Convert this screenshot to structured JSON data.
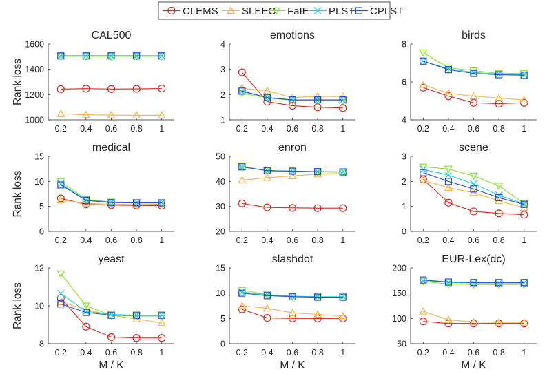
{
  "legend": {
    "placement": "top-center",
    "items": [
      {
        "name": "CLEMS",
        "color": "#d7261e",
        "marker": "circle"
      },
      {
        "name": "SLEEC",
        "color": "#f5b14c",
        "marker": "triangle-up"
      },
      {
        "name": "FaIE",
        "color": "#8de02a",
        "marker": "triangle-down"
      },
      {
        "name": "PLST",
        "color": "#1ecfe6",
        "marker": "x"
      },
      {
        "name": "CPLST",
        "color": "#2a4fd6",
        "marker": "square"
      }
    ]
  },
  "chart_data": [
    {
      "type": "line",
      "title": "CAL500",
      "xlabel": "",
      "ylabel": "Rank loss",
      "x": [
        0.2,
        0.4,
        0.6,
        0.8,
        1
      ],
      "xlim": [
        0.1,
        1.1
      ],
      "ylim": [
        1000,
        1600
      ],
      "yticks": [
        1000,
        1200,
        1400,
        1600
      ],
      "grid": false,
      "series": [
        {
          "name": "CLEMS",
          "values": [
            1243,
            1247,
            1244,
            1245,
            1248
          ]
        },
        {
          "name": "SLEEC",
          "values": [
            1048,
            1040,
            1038,
            1036,
            1036
          ]
        },
        {
          "name": "FaIE",
          "values": [
            1503,
            1503,
            1503,
            1503,
            1503
          ]
        },
        {
          "name": "PLST",
          "values": [
            1506,
            1506,
            1506,
            1506,
            1506
          ]
        },
        {
          "name": "CPLST",
          "values": [
            1506,
            1506,
            1506,
            1506,
            1506
          ]
        }
      ]
    },
    {
      "type": "line",
      "title": "emotions",
      "xlabel": "",
      "ylabel": "",
      "x": [
        0.2,
        0.4,
        0.6,
        0.8,
        1
      ],
      "xlim": [
        0.1,
        1.1
      ],
      "ylim": [
        1,
        4
      ],
      "yticks": [
        1,
        2,
        3,
        4
      ],
      "grid": false,
      "series": [
        {
          "name": "CLEMS",
          "values": [
            2.88,
            1.72,
            1.56,
            1.5,
            1.47
          ]
        },
        {
          "name": "SLEEC",
          "values": [
            2.25,
            2.15,
            1.88,
            1.93,
            1.92
          ]
        },
        {
          "name": "FaIE",
          "values": [
            2.05,
            1.87,
            1.77,
            1.78,
            1.77
          ]
        },
        {
          "name": "PLST",
          "values": [
            2.12,
            1.88,
            1.79,
            1.79,
            1.78
          ]
        },
        {
          "name": "CPLST",
          "values": [
            2.14,
            1.88,
            1.79,
            1.79,
            1.79
          ]
        }
      ]
    },
    {
      "type": "line",
      "title": "birds",
      "xlabel": "",
      "ylabel": "",
      "x": [
        0.2,
        0.4,
        0.6,
        0.8,
        1
      ],
      "xlim": [
        0.1,
        1.1
      ],
      "ylim": [
        4,
        8
      ],
      "yticks": [
        4,
        6,
        8
      ],
      "grid": false,
      "series": [
        {
          "name": "CLEMS",
          "values": [
            5.7,
            5.25,
            4.9,
            4.85,
            4.9
          ]
        },
        {
          "name": "SLEEC",
          "values": [
            5.85,
            5.4,
            5.25,
            5.15,
            5.05
          ]
        },
        {
          "name": "FaIE",
          "values": [
            7.55,
            6.75,
            6.6,
            6.45,
            6.45
          ]
        },
        {
          "name": "PLST",
          "values": [
            7.1,
            6.7,
            6.5,
            6.42,
            6.38
          ]
        },
        {
          "name": "CPLST",
          "values": [
            7.1,
            6.65,
            6.45,
            6.38,
            6.35
          ]
        }
      ]
    },
    {
      "type": "line",
      "title": "medical",
      "xlabel": "",
      "ylabel": "Rank loss",
      "x": [
        0.2,
        0.4,
        0.6,
        0.8,
        1
      ],
      "xlim": [
        0.1,
        1.1
      ],
      "ylim": [
        0,
        15
      ],
      "yticks": [
        0,
        5,
        10,
        15
      ],
      "grid": false,
      "series": [
        {
          "name": "CLEMS",
          "values": [
            6.6,
            5.4,
            5.25,
            5.2,
            5.15
          ]
        },
        {
          "name": "SLEEC",
          "values": [
            6.3,
            5.6,
            5.45,
            5.4,
            5.45
          ]
        },
        {
          "name": "FaIE",
          "values": [
            10.0,
            6.4,
            5.9,
            5.8,
            5.8
          ]
        },
        {
          "name": "PLST",
          "values": [
            9.5,
            6.3,
            5.85,
            5.75,
            5.75
          ]
        },
        {
          "name": "CPLST",
          "values": [
            9.3,
            6.2,
            5.75,
            5.7,
            5.7
          ]
        }
      ]
    },
    {
      "type": "line",
      "title": "enron",
      "xlabel": "",
      "ylabel": "",
      "x": [
        0.2,
        0.4,
        0.6,
        0.8,
        1
      ],
      "xlim": [
        0.1,
        1.1
      ],
      "ylim": [
        20,
        50
      ],
      "yticks": [
        20,
        30,
        40,
        50
      ],
      "grid": false,
      "series": [
        {
          "name": "CLEMS",
          "values": [
            31.2,
            29.6,
            29.4,
            29.3,
            29.3
          ]
        },
        {
          "name": "SLEEC",
          "values": [
            40.5,
            41.5,
            42.2,
            42.9,
            43.2
          ]
        },
        {
          "name": "FaIE",
          "values": [
            46.2,
            44.2,
            44.0,
            43.8,
            43.7
          ]
        },
        {
          "name": "PLST",
          "values": [
            45.8,
            44.3,
            44.1,
            43.9,
            43.8
          ]
        },
        {
          "name": "CPLST",
          "values": [
            45.8,
            44.3,
            44.1,
            43.9,
            43.8
          ]
        }
      ]
    },
    {
      "type": "line",
      "title": "scene",
      "xlabel": "",
      "ylabel": "",
      "x": [
        0.2,
        0.4,
        0.6,
        0.8,
        1
      ],
      "xlim": [
        0.1,
        1.1
      ],
      "ylim": [
        0,
        3
      ],
      "yticks": [
        0,
        1,
        2,
        3
      ],
      "grid": false,
      "series": [
        {
          "name": "CLEMS",
          "values": [
            2.08,
            1.15,
            0.8,
            0.72,
            0.67
          ]
        },
        {
          "name": "SLEEC",
          "values": [
            2.05,
            1.75,
            1.55,
            1.22,
            0.95
          ]
        },
        {
          "name": "FaIE",
          "values": [
            2.58,
            2.5,
            2.22,
            1.82,
            1.12
          ]
        },
        {
          "name": "PLST",
          "values": [
            2.48,
            2.25,
            1.9,
            1.45,
            1.1
          ]
        },
        {
          "name": "CPLST",
          "values": [
            2.35,
            2.0,
            1.7,
            1.35,
            1.08
          ]
        }
      ]
    },
    {
      "type": "line",
      "title": "yeast",
      "xlabel": "M / K",
      "ylabel": "Rank loss",
      "x": [
        0.2,
        0.4,
        0.6,
        0.8,
        1
      ],
      "xlim": [
        0.1,
        1.1
      ],
      "ylim": [
        8,
        12
      ],
      "yticks": [
        8,
        10,
        12
      ],
      "grid": false,
      "series": [
        {
          "name": "CLEMS",
          "values": [
            10.4,
            8.9,
            8.35,
            8.3,
            8.3
          ]
        },
        {
          "name": "SLEEC",
          "values": [
            10.2,
            9.8,
            9.5,
            9.3,
            9.1
          ]
        },
        {
          "name": "FaIE",
          "values": [
            11.7,
            10.0,
            9.5,
            9.45,
            9.45
          ]
        },
        {
          "name": "PLST",
          "values": [
            10.65,
            9.7,
            9.55,
            9.5,
            9.5
          ]
        },
        {
          "name": "CPLST",
          "values": [
            10.1,
            9.65,
            9.5,
            9.5,
            9.5
          ]
        }
      ]
    },
    {
      "type": "line",
      "title": "slashdot",
      "xlabel": "M / K",
      "ylabel": "",
      "x": [
        0.2,
        0.4,
        0.6,
        0.8,
        1
      ],
      "xlim": [
        0.1,
        1.1
      ],
      "ylim": [
        0,
        15
      ],
      "yticks": [
        0,
        5,
        10,
        15
      ],
      "grid": false,
      "series": [
        {
          "name": "CLEMS",
          "values": [
            6.8,
            5.1,
            5.0,
            5.0,
            5.0
          ]
        },
        {
          "name": "SLEEC",
          "values": [
            7.5,
            7.0,
            6.1,
            5.8,
            5.5
          ]
        },
        {
          "name": "FaIE",
          "values": [
            10.6,
            9.7,
            9.3,
            9.2,
            9.2
          ]
        },
        {
          "name": "PLST",
          "values": [
            10.2,
            9.7,
            9.4,
            9.3,
            9.3
          ]
        },
        {
          "name": "CPLST",
          "values": [
            10.0,
            9.5,
            9.3,
            9.2,
            9.2
          ]
        }
      ]
    },
    {
      "type": "line",
      "title": "EUR-Lex(dc)",
      "xlabel": "M / K",
      "ylabel": "",
      "x": [
        0.2,
        0.4,
        0.6,
        0.8,
        1
      ],
      "xlim": [
        0.1,
        1.1
      ],
      "ylim": [
        50,
        200
      ],
      "yticks": [
        50,
        100,
        150,
        200
      ],
      "grid": false,
      "series": [
        {
          "name": "CLEMS",
          "values": [
            94,
            90,
            90,
            90,
            90
          ]
        },
        {
          "name": "SLEEC",
          "values": [
            114,
            97,
            93,
            92,
            92
          ]
        },
        {
          "name": "FaIE",
          "values": [
            173,
            168,
            167,
            167,
            167
          ]
        },
        {
          "name": "PLST",
          "values": [
            175,
            171,
            170,
            170,
            170
          ]
        },
        {
          "name": "CPLST",
          "values": [
            176,
            172,
            171,
            171,
            171
          ]
        }
      ]
    }
  ]
}
